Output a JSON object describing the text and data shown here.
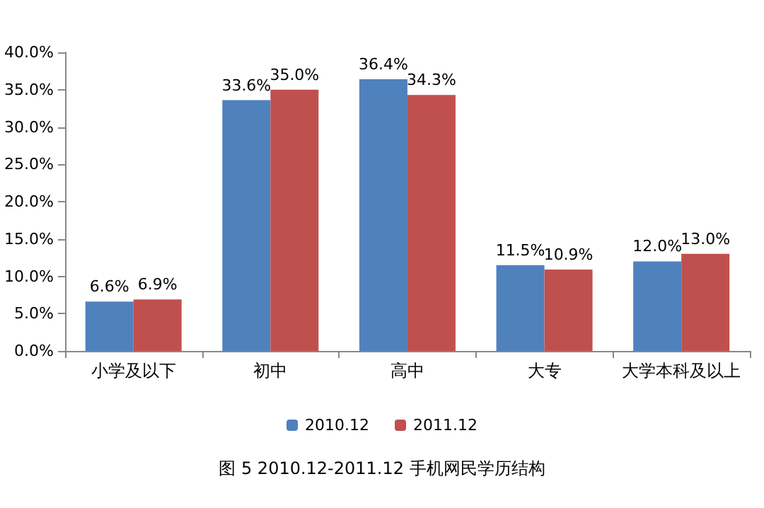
{
  "chart_data": {
    "type": "bar",
    "title": "图 5 2010.12-2011.12 手机网民学历结构",
    "categories": [
      "小学及以下",
      "初中",
      "高中",
      "大专",
      "大学本科及以上"
    ],
    "series": [
      {
        "name": "2010.12",
        "color": "#4f81bd",
        "values": [
          6.6,
          33.6,
          36.4,
          11.5,
          12.0
        ],
        "value_labels": [
          "6.6%",
          "33.6%",
          "36.4%",
          "11.5%",
          "12.0%"
        ]
      },
      {
        "name": "2011.12",
        "color": "#c0504d",
        "values": [
          6.9,
          35.0,
          34.3,
          10.9,
          13.0
        ],
        "value_labels": [
          "6.9%",
          "35.0%",
          "34.3%",
          "10.9%",
          "13.0%"
        ]
      }
    ],
    "ylim": [
      0,
      40
    ],
    "yticks": [
      {
        "value": 0,
        "label": "0.0%"
      },
      {
        "value": 5,
        "label": "5.0%"
      },
      {
        "value": 10,
        "label": "10.0%"
      },
      {
        "value": 15,
        "label": "15.0%"
      },
      {
        "value": 20,
        "label": "20.0%"
      },
      {
        "value": 25,
        "label": "25.0%"
      },
      {
        "value": 30,
        "label": "30.0%"
      },
      {
        "value": 35,
        "label": "35.0%"
      },
      {
        "value": 40,
        "label": "40.0%"
      }
    ],
    "grid": false,
    "legend": "bottom"
  }
}
